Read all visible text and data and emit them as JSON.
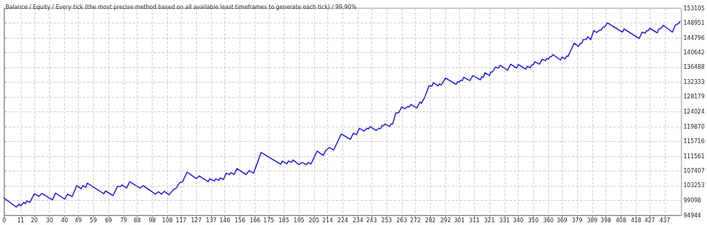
{
  "chart_data": {
    "type": "line",
    "title": "Balance / Equity / Every tick (the most precise method based on all available least timeframes to generate each tick) / 99.90%",
    "series": [
      {
        "color": "#2424c8",
        "x": [
          0,
          8,
          10,
          11,
          13,
          14,
          15,
          17,
          20,
          23,
          25,
          32,
          34,
          40,
          42,
          45,
          48,
          51,
          52,
          54,
          55,
          66,
          67,
          72,
          75,
          77,
          78,
          81,
          83,
          90,
          92,
          100,
          102,
          104,
          106,
          109,
          112,
          114,
          116,
          118,
          121,
          127,
          129,
          135,
          136,
          139,
          140,
          142,
          143,
          145,
          147,
          149,
          150,
          152,
          154,
          160,
          162,
          165,
          170,
          183,
          184,
          187,
          188,
          190,
          191,
          195,
          197,
          200,
          201,
          203,
          207,
          211,
          213,
          215,
          218,
          223,
          229,
          231,
          233,
          235,
          238,
          240,
          241,
          242,
          246,
          248,
          249,
          250,
          251,
          252,
          255,
          256,
          257,
          259,
          261,
          263,
          265,
          267,
          268,
          269,
          273,
          275,
          276,
          278,
          281,
          283,
          284,
          287,
          288,
          289,
          292,
          299,
          300,
          301,
          302,
          303,
          304,
          308,
          310,
          315,
          316,
          317,
          318,
          321,
          322,
          323,
          325,
          327,
          328,
          333,
          335,
          339,
          340,
          345,
          346,
          348,
          349,
          350,
          351,
          354,
          356,
          358,
          359,
          360,
          361,
          362,
          363,
          368,
          369,
          371,
          372,
          373,
          377,
          380,
          381,
          382,
          383,
          385,
          386,
          388,
          390,
          392,
          394,
          395,
          396,
          397,
          399,
          409,
          410,
          420,
          422,
          424,
          425,
          426,
          427,
          432,
          433,
          434,
          436,
          442,
          444,
          446,
          447
        ],
        "values": [
          99800,
          97300,
          98100,
          97600,
          98600,
          98200,
          99000,
          98600,
          101000,
          100300,
          101100,
          99300,
          101200,
          99500,
          100900,
          100200,
          103300,
          102400,
          103300,
          102800,
          104000,
          101000,
          101800,
          100500,
          103100,
          103000,
          103500,
          102600,
          104400,
          102600,
          103300,
          100900,
          101600,
          100900,
          101700,
          100700,
          102200,
          102700,
          104100,
          104400,
          107100,
          105300,
          106000,
          104400,
          105200,
          104600,
          105200,
          104800,
          105500,
          105000,
          106800,
          106400,
          107000,
          106400,
          108100,
          106400,
          107500,
          106800,
          112600,
          109300,
          110200,
          109400,
          110200,
          109800,
          110500,
          109200,
          109800,
          109200,
          109800,
          109400,
          113000,
          111800,
          113300,
          114000,
          113300,
          117800,
          116300,
          118000,
          117600,
          119400,
          118600,
          119400,
          119200,
          119900,
          118800,
          119400,
          119300,
          120200,
          120100,
          120600,
          119900,
          120700,
          120600,
          123700,
          123800,
          125400,
          124900,
          125500,
          125400,
          126100,
          125100,
          126800,
          126400,
          127900,
          131300,
          131300,
          132200,
          131300,
          131900,
          131500,
          133500,
          131700,
          132500,
          132400,
          132900,
          132800,
          133700,
          132800,
          134200,
          133000,
          133900,
          133800,
          135000,
          134200,
          135200,
          135200,
          136600,
          136300,
          137100,
          135700,
          137400,
          136300,
          137300,
          136000,
          136800,
          136400,
          137200,
          137200,
          138100,
          137400,
          138800,
          138400,
          139000,
          138800,
          139500,
          139500,
          140100,
          138600,
          139400,
          138900,
          139700,
          139600,
          143300,
          142400,
          143200,
          143200,
          144300,
          144300,
          145100,
          144300,
          146800,
          146300,
          147000,
          147000,
          147800,
          147800,
          149000,
          146400,
          147300,
          144600,
          146400,
          146100,
          146800,
          146800,
          147500,
          146200,
          147300,
          147300,
          148300,
          146400,
          148400,
          148800,
          149400
        ]
      }
    ],
    "xlim": [
      0,
      448
    ],
    "xticks": [
      0,
      11,
      20,
      30,
      40,
      49,
      59,
      69,
      79,
      88,
      98,
      108,
      117,
      127,
      137,
      146,
      156,
      166,
      175,
      185,
      195,
      205,
      214,
      224,
      234,
      243,
      253,
      263,
      272,
      282,
      292,
      301,
      311,
      321,
      331,
      340,
      350,
      360,
      369,
      379,
      389,
      398,
      408,
      418,
      427,
      437
    ],
    "ylim": [
      94944,
      153105
    ],
    "yticks": [
      94944,
      99098,
      103253,
      107407,
      111561,
      115716,
      119870,
      124024,
      128179,
      132333,
      136488,
      140642,
      144796,
      148951,
      153105
    ],
    "grid": true,
    "marker": "none",
    "line_style": "solid"
  }
}
